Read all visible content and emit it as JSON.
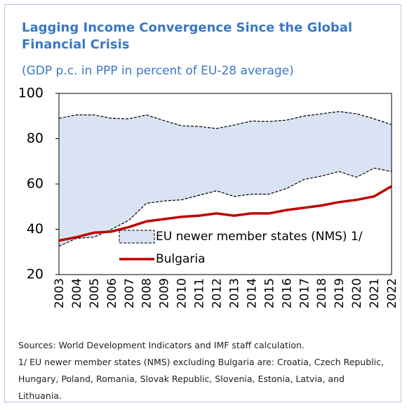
{
  "chart_data": {
    "type": "band_line",
    "title": "Lagging Income Convergence Since the Global Financial Crisis",
    "subtitle": "(GDP p.c. in PPP in percent of EU-28 average)",
    "categories": [
      "2003",
      "2004",
      "2005",
      "2006",
      "2007",
      "2008",
      "2009",
      "2010",
      "2011",
      "2012",
      "2013",
      "2014",
      "2015",
      "2016",
      "2017",
      "2018",
      "2019",
      "2020",
      "2021",
      "2022"
    ],
    "ylim": [
      20,
      100
    ],
    "yticks": [
      20,
      40,
      60,
      80,
      100
    ],
    "series": [
      {
        "name": "EU newer member states (NMS) 1/",
        "color": "#dae3f3",
        "upper": [
          89,
          90.5,
          90.5,
          89,
          88.8,
          90.5,
          88,
          85.7,
          85.4,
          84.5,
          86,
          87.8,
          87.6,
          88.2,
          90,
          91,
          92,
          91,
          88.8,
          86.2
        ],
        "lower": [
          32.5,
          36,
          36.5,
          40,
          44,
          51.5,
          52.5,
          53,
          55,
          57,
          54.5,
          55.5,
          55.5,
          58,
          62,
          63.5,
          65.5,
          63,
          67,
          65.5
        ]
      },
      {
        "name": "Bulgaria",
        "color": "#c00000",
        "values": [
          35,
          36.5,
          38.5,
          39,
          41,
          43.5,
          44.5,
          45.5,
          46,
          47,
          46,
          47,
          47,
          48.5,
          49.5,
          50.5,
          52,
          53,
          54.5,
          59
        ]
      }
    ],
    "legend": "lower-right",
    "source": "Sources: World Development Indicators and IMF staff calculation.",
    "footnote": "1/ EU newer member states (NMS) excluding Bulgaria are: Croatia, Czech Republic, Hungary, Poland, Romania, Slovak Republic, Slovenia, Estonia, Latvia, and Lithuania."
  }
}
